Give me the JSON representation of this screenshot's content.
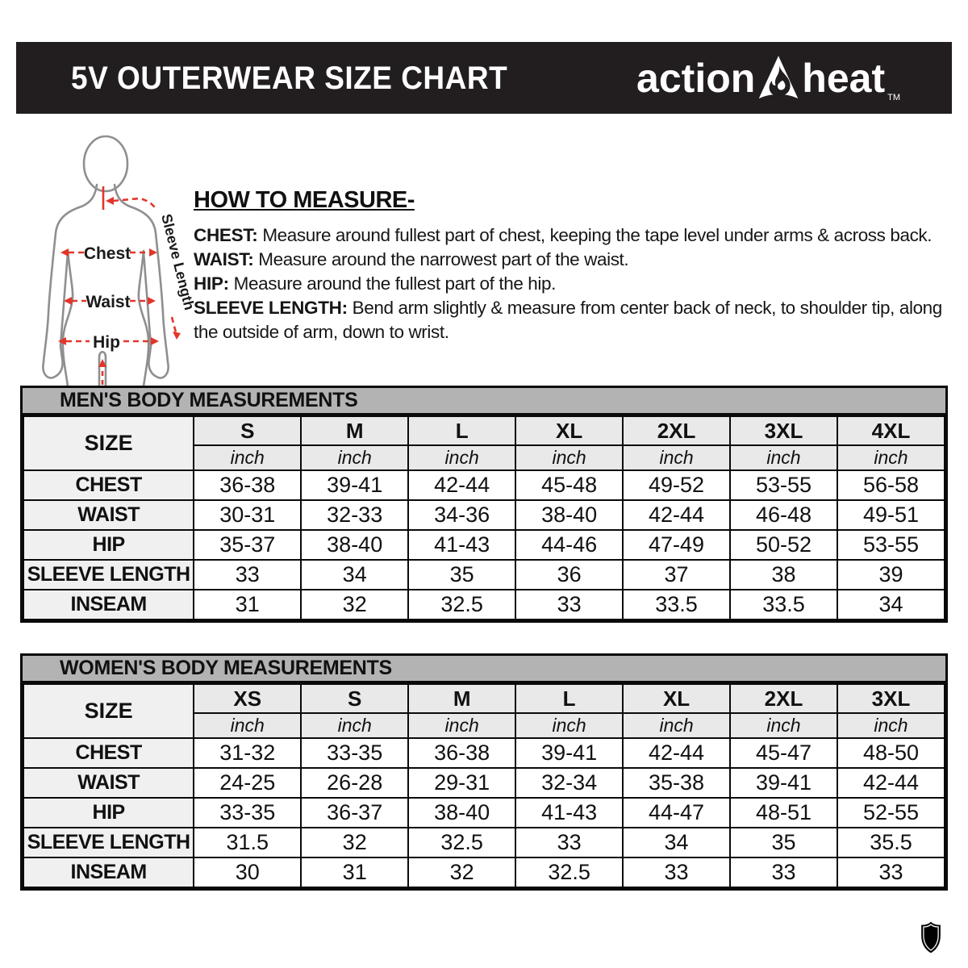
{
  "header": {
    "title": "5V OUTERWEAR SIZE CHART",
    "brand": {
      "action": "action",
      "heat": "heat",
      "tm": "TM"
    }
  },
  "figure": {
    "labels": {
      "chest": "Chest",
      "waist": "Waist",
      "hip": "Hip",
      "sleeve": "Sleeve Length"
    }
  },
  "how_to_measure": {
    "heading": "HOW TO MEASURE-",
    "items": [
      {
        "label": "CHEST:",
        "text": " Measure around fullest part of chest, keeping the tape level under arms & across back."
      },
      {
        "label": "WAIST:",
        "text": " Measure around the narrowest part of the waist."
      },
      {
        "label": "HIP:",
        "text": " Measure around the fullest part of the hip."
      },
      {
        "label": "SLEEVE LENGTH:",
        "text": " Bend arm slightly & measure from center back of neck, to shoulder tip, along the outside of arm, down to wrist."
      }
    ]
  },
  "tables": [
    {
      "title": "MEN'S BODY MEASUREMENTS",
      "size_label": "SIZE",
      "unit": "inch",
      "sizes": [
        "S",
        "M",
        "L",
        "XL",
        "2XL",
        "3XL",
        "4XL"
      ],
      "rows": [
        {
          "label": "CHEST",
          "values": [
            "36-38",
            "39-41",
            "42-44",
            "45-48",
            "49-52",
            "53-55",
            "56-58"
          ]
        },
        {
          "label": "WAIST",
          "values": [
            "30-31",
            "32-33",
            "34-36",
            "38-40",
            "42-44",
            "46-48",
            "49-51"
          ]
        },
        {
          "label": "HIP",
          "values": [
            "35-37",
            "38-40",
            "41-43",
            "44-46",
            "47-49",
            "50-52",
            "53-55"
          ]
        },
        {
          "label": "SLEEVE LENGTH",
          "values": [
            "33",
            "34",
            "35",
            "36",
            "37",
            "38",
            "39"
          ]
        },
        {
          "label": "INSEAM",
          "values": [
            "31",
            "32",
            "32.5",
            "33",
            "33.5",
            "33.5",
            "34"
          ]
        }
      ]
    },
    {
      "title": "WOMEN'S BODY MEASUREMENTS",
      "size_label": "SIZE",
      "unit": "inch",
      "sizes": [
        "XS",
        "S",
        "M",
        "L",
        "XL",
        "2XL",
        "3XL"
      ],
      "rows": [
        {
          "label": "CHEST",
          "values": [
            "31-32",
            "33-35",
            "36-38",
            "39-41",
            "42-44",
            "45-47",
            "48-50"
          ]
        },
        {
          "label": "WAIST",
          "values": [
            "24-25",
            "26-28",
            "29-31",
            "32-34",
            "35-38",
            "39-41",
            "42-44"
          ]
        },
        {
          "label": "HIP",
          "values": [
            "33-35",
            "36-37",
            "38-40",
            "41-43",
            "44-47",
            "48-51",
            "52-55"
          ]
        },
        {
          "label": "SLEEVE LENGTH",
          "values": [
            "31.5",
            "32",
            "32.5",
            "33",
            "34",
            "35",
            "35.5"
          ]
        },
        {
          "label": "INSEAM",
          "values": [
            "30",
            "31",
            "32",
            "32.5",
            "33",
            "33",
            "33"
          ]
        }
      ]
    }
  ],
  "icons": {
    "brand_flame": "flame-icon",
    "footer_shield": "shield-icon"
  },
  "colors": {
    "header_bg": "#221e1f",
    "table_title_bg": "#b3b3b3",
    "header_cell_bg": "#e9e9e9",
    "label_cell_bg": "#f0f0f0",
    "annotation_red": "#e2362b",
    "figure_outline": "#8f8f8f"
  }
}
